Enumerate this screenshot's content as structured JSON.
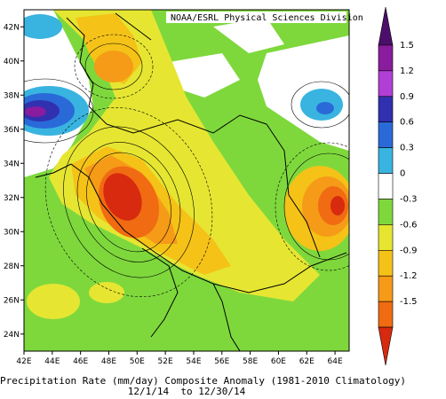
{
  "map": {
    "credit": "NOAA/ESRL Physical Sciences Division",
    "lat_labels": [
      "42N",
      "40N",
      "38N",
      "36N",
      "34N",
      "32N",
      "30N",
      "28N",
      "26N",
      "24N"
    ],
    "lon_labels": [
      "42E",
      "44E",
      "46E",
      "48E",
      "50E",
      "52E",
      "54E",
      "56E",
      "58E",
      "60E",
      "62E",
      "64E"
    ],
    "lon_range": [
      42,
      65
    ],
    "lat_range": [
      23,
      43
    ],
    "caption_line1": "Precipitation Rate (mm/day) Composite Anomaly (1981-2010 Climatology)",
    "caption_line2": "12/1/14  to 12/30/14"
  },
  "colorbar": {
    "ticks": [
      "1.5",
      "1.2",
      "0.9",
      "0.6",
      "0.3",
      "0",
      "-0.3",
      "-0.6",
      "-0.9",
      "-1.2",
      "-1.5"
    ],
    "colors": [
      "#4b0f6b",
      "#8a1c9e",
      "#b13fd6",
      "#3030b0",
      "#2a6ad8",
      "#39b4e0",
      "#ffffff",
      "#7ed83c",
      "#e6e632",
      "#f5c218",
      "#f59b18",
      "#f06b12",
      "#d72a0f"
    ]
  }
}
